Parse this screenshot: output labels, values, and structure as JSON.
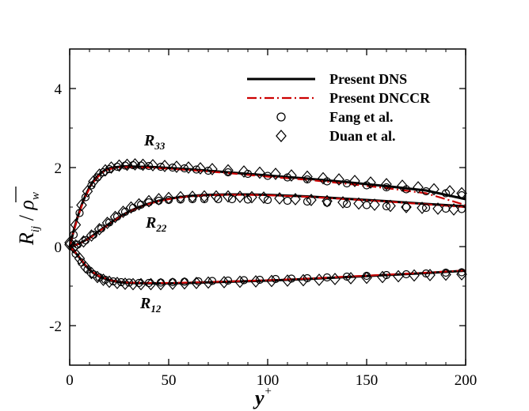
{
  "chart_data": {
    "type": "line",
    "title": "",
    "xlabel": {
      "main": "y",
      "sup": "+"
    },
    "ylabel": {
      "R": "R",
      "R_sub": "ij",
      "rho": "ρ",
      "rho_sub": "w"
    },
    "xlim": [
      0,
      200
    ],
    "ylim": [
      -3,
      5
    ],
    "xticks": [
      0,
      50,
      100,
      150,
      200
    ],
    "xtick_labels": [
      "0",
      "50",
      "100",
      "150",
      "200"
    ],
    "yticks": [
      -2,
      0,
      2,
      4
    ],
    "ytick_labels": [
      "-2",
      "0",
      "2",
      "4"
    ],
    "grid": false,
    "legend_position": "top-right",
    "legend": [
      {
        "label": "Present DNS",
        "style": "solid-line",
        "color": "#000000"
      },
      {
        "label": "Present DNCCR",
        "style": "dash-dot-line",
        "color": "#cc0000"
      },
      {
        "label": "Fang et al.",
        "style": "circle-marker",
        "color": "#000000"
      },
      {
        "label": "Duan et al.",
        "style": "diamond-marker",
        "color": "#000000"
      }
    ],
    "annotations": [
      {
        "main": "R",
        "sub": "33"
      },
      {
        "main": "R",
        "sub": "22"
      },
      {
        "main": "R",
        "sub": "12"
      }
    ],
    "series": [
      {
        "name": "Present DNS",
        "color": "#000000",
        "curves": [
          {
            "component": "R33",
            "x": [
              0,
              2,
              4,
              6,
              8,
              10,
              12,
              14,
              16,
              18,
              20,
              22,
              25,
              28,
              30,
              35,
              40,
              50,
              60,
              80,
              100,
              120,
              140,
              160,
              180,
              200
            ],
            "y": [
              0,
              0.4,
              0.75,
              1.05,
              1.3,
              1.5,
              1.66,
              1.78,
              1.87,
              1.94,
              1.98,
              2.0,
              2.02,
              2.03,
              2.03,
              2.02,
              2.02,
              1.99,
              1.96,
              1.88,
              1.8,
              1.72,
              1.63,
              1.53,
              1.42,
              1.2
            ]
          },
          {
            "component": "R22",
            "x": [
              0,
              5,
              10,
              15,
              20,
              25,
              30,
              35,
              40,
              45,
              50,
              60,
              70,
              80,
              90,
              100,
              120,
              140,
              160,
              180,
              200
            ],
            "y": [
              0,
              0.08,
              0.22,
              0.4,
              0.58,
              0.75,
              0.89,
              1.0,
              1.09,
              1.16,
              1.21,
              1.28,
              1.31,
              1.32,
              1.32,
              1.31,
              1.27,
              1.21,
              1.15,
              1.08,
              1.02
            ]
          },
          {
            "component": "R12",
            "x": [
              0,
              2,
              4,
              6,
              8,
              10,
              12,
              15,
              20,
              25,
              30,
              40,
              50,
              60,
              80,
              100,
              120,
              140,
              160,
              180,
              200
            ],
            "y": [
              0,
              -0.1,
              -0.22,
              -0.35,
              -0.48,
              -0.58,
              -0.67,
              -0.76,
              -0.85,
              -0.9,
              -0.92,
              -0.93,
              -0.93,
              -0.92,
              -0.89,
              -0.86,
              -0.82,
              -0.77,
              -0.72,
              -0.67,
              -0.61
            ]
          }
        ]
      },
      {
        "name": "Present DNCCR",
        "color": "#cc0000",
        "curves": [
          {
            "component": "R33",
            "x": [
              0,
              2,
              4,
              6,
              8,
              10,
              12,
              14,
              16,
              18,
              20,
              22,
              25,
              28,
              30,
              35,
              40,
              50,
              60,
              80,
              100,
              120,
              140,
              160,
              180,
              200
            ],
            "y": [
              0,
              0.38,
              0.72,
              1.02,
              1.27,
              1.47,
              1.63,
              1.75,
              1.85,
              1.92,
              1.96,
              1.98,
              2.0,
              2.01,
              2.01,
              2.0,
              2.0,
              1.97,
              1.94,
              1.86,
              1.77,
              1.69,
              1.59,
              1.48,
              1.35,
              1.05
            ]
          },
          {
            "component": "R22",
            "x": [
              0,
              5,
              10,
              15,
              20,
              25,
              30,
              35,
              40,
              45,
              50,
              60,
              70,
              80,
              90,
              100,
              120,
              140,
              160,
              180,
              200
            ],
            "y": [
              0,
              0.07,
              0.21,
              0.39,
              0.57,
              0.74,
              0.88,
              0.99,
              1.08,
              1.15,
              1.2,
              1.27,
              1.3,
              1.31,
              1.31,
              1.3,
              1.26,
              1.2,
              1.14,
              1.07,
              1.0
            ]
          },
          {
            "component": "R12",
            "x": [
              0,
              2,
              4,
              6,
              8,
              10,
              12,
              15,
              20,
              25,
              30,
              40,
              50,
              60,
              80,
              100,
              120,
              140,
              160,
              180,
              200
            ],
            "y": [
              0,
              -0.1,
              -0.21,
              -0.34,
              -0.47,
              -0.57,
              -0.66,
              -0.75,
              -0.84,
              -0.89,
              -0.91,
              -0.92,
              -0.92,
              -0.91,
              -0.88,
              -0.85,
              -0.81,
              -0.76,
              -0.71,
              -0.66,
              -0.6
            ]
          }
        ]
      },
      {
        "name": "Fang et al.",
        "marker": "circle",
        "curves": [
          {
            "component": "R33",
            "x": [
              2,
              5,
              8,
              11,
              14,
              17,
              20,
              24,
              28,
              32,
              36,
              40,
              46,
              52,
              58,
              64,
              70,
              80,
              90,
              100,
              110,
              120,
              130,
              140,
              150,
              160,
              170,
              180,
              190,
              198
            ],
            "y": [
              0.3,
              0.85,
              1.25,
              1.55,
              1.75,
              1.88,
              1.96,
              2.02,
              2.05,
              2.06,
              2.05,
              2.04,
              2.02,
              2.0,
              1.98,
              1.95,
              1.92,
              1.88,
              1.84,
              1.79,
              1.75,
              1.7,
              1.65,
              1.6,
              1.55,
              1.5,
              1.45,
              1.4,
              1.35,
              1.3
            ]
          },
          {
            "component": "R22",
            "x": [
              4,
              8,
              12,
              16,
              20,
              24,
              28,
              32,
              36,
              40,
              45,
              50,
              56,
              62,
              68,
              75,
              82,
              90,
              100,
              110,
              120,
              130,
              140,
              150,
              160,
              170,
              180,
              190,
              198
            ],
            "y": [
              0.05,
              0.16,
              0.3,
              0.46,
              0.61,
              0.76,
              0.88,
              0.98,
              1.06,
              1.12,
              1.16,
              1.18,
              1.19,
              1.2,
              1.2,
              1.2,
              1.2,
              1.19,
              1.18,
              1.16,
              1.14,
              1.11,
              1.08,
              1.05,
              1.02,
              1.0,
              0.98,
              0.96,
              0.95
            ]
          },
          {
            "component": "R12",
            "x": [
              3,
              6,
              9,
              12,
              15,
              18,
              22,
              26,
              30,
              35,
              40,
              46,
              52,
              58,
              65,
              72,
              80,
              88,
              96,
              104,
              112,
              120,
              130,
              140,
              150,
              160,
              170,
              180,
              190,
              198
            ],
            "y": [
              -0.18,
              -0.4,
              -0.58,
              -0.7,
              -0.78,
              -0.84,
              -0.88,
              -0.9,
              -0.91,
              -0.92,
              -0.92,
              -0.91,
              -0.9,
              -0.89,
              -0.88,
              -0.87,
              -0.86,
              -0.85,
              -0.84,
              -0.82,
              -0.81,
              -0.8,
              -0.78,
              -0.76,
              -0.74,
              -0.72,
              -0.7,
              -0.68,
              -0.66,
              -0.65
            ]
          }
        ]
      },
      {
        "name": "Duan et al.",
        "marker": "diamond",
        "curves": [
          {
            "component": "R33",
            "x": [
              0,
              3,
              6,
              9,
              12,
              15,
              18,
              21,
              25,
              29,
              33,
              37,
              42,
              48,
              54,
              60,
              66,
              72,
              80,
              88,
              96,
              104,
              112,
              120,
              128,
              136,
              144,
              152,
              160,
              168,
              176,
              184,
              192,
              198
            ],
            "y": [
              0.05,
              0.55,
              1.05,
              1.4,
              1.65,
              1.82,
              1.93,
              2.0,
              2.05,
              2.07,
              2.08,
              2.07,
              2.06,
              2.04,
              2.02,
              2.0,
              1.98,
              1.96,
              1.93,
              1.9,
              1.87,
              1.84,
              1.8,
              1.77,
              1.73,
              1.7,
              1.66,
              1.62,
              1.58,
              1.54,
              1.5,
              1.45,
              1.4,
              1.35
            ]
          },
          {
            "component": "R22",
            "x": [
              3,
              7,
              11,
              15,
              19,
              23,
              27,
              31,
              35,
              40,
              45,
              50,
              56,
              62,
              68,
              74,
              80,
              86,
              92,
              98,
              106,
              114,
              122,
              130,
              138,
              146,
              154,
              162,
              170,
              178,
              186,
              194
            ],
            "y": [
              0.03,
              0.13,
              0.28,
              0.44,
              0.6,
              0.75,
              0.88,
              0.99,
              1.07,
              1.15,
              1.2,
              1.23,
              1.25,
              1.26,
              1.27,
              1.27,
              1.27,
              1.26,
              1.25,
              1.24,
              1.22,
              1.2,
              1.18,
              1.15,
              1.12,
              1.09,
              1.06,
              1.03,
              1.0,
              0.98,
              0.96,
              0.94
            ]
          },
          {
            "component": "R12",
            "x": [
              0,
              2,
              5,
              8,
              11,
              14,
              17,
              20,
              24,
              28,
              32,
              36,
              41,
              46,
              52,
              58,
              64,
              70,
              78,
              86,
              94,
              102,
              110,
              118,
              126,
              134,
              142,
              150,
              158,
              166,
              174,
              182,
              190,
              198
            ],
            "y": [
              0.1,
              -0.02,
              -0.3,
              -0.52,
              -0.67,
              -0.77,
              -0.84,
              -0.89,
              -0.92,
              -0.94,
              -0.95,
              -0.95,
              -0.95,
              -0.95,
              -0.94,
              -0.93,
              -0.92,
              -0.91,
              -0.9,
              -0.89,
              -0.88,
              -0.87,
              -0.86,
              -0.85,
              -0.84,
              -0.82,
              -0.8,
              -0.79,
              -0.77,
              -0.75,
              -0.73,
              -0.72,
              -0.71,
              -0.7
            ]
          }
        ]
      }
    ]
  }
}
